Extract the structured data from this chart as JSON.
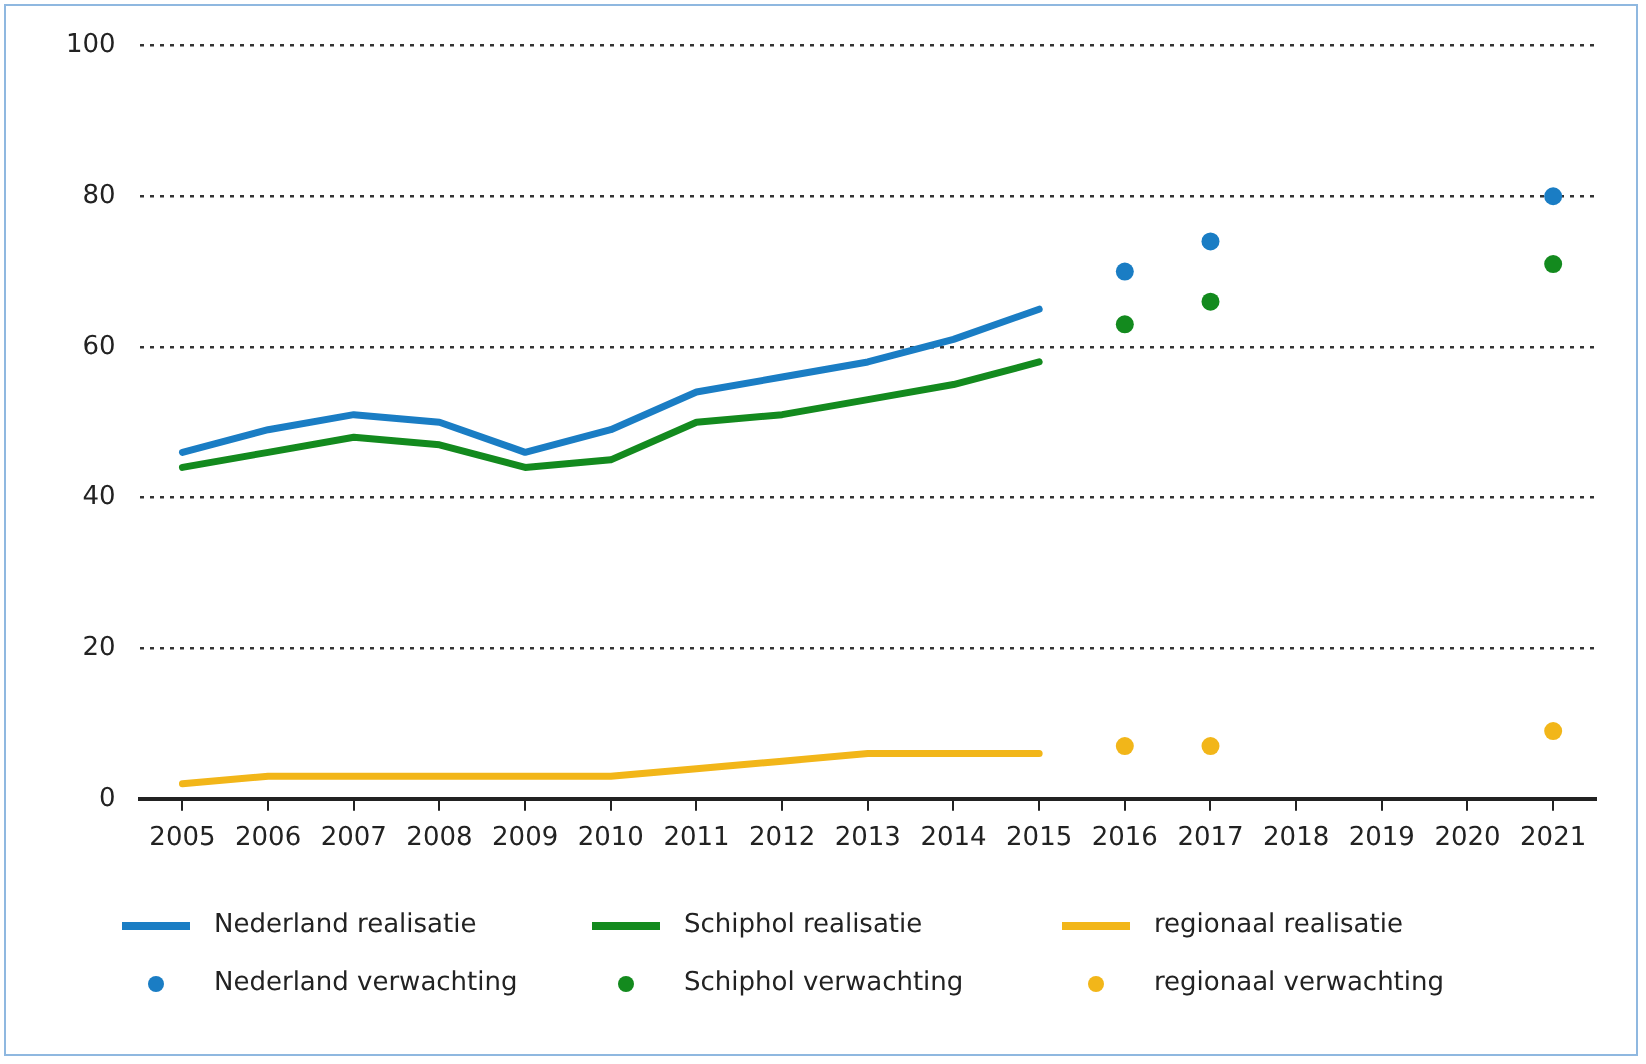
{
  "chart_data": {
    "type": "line",
    "categories": [
      "2005",
      "2006",
      "2007",
      "2008",
      "2009",
      "2010",
      "2011",
      "2012",
      "2013",
      "2014",
      "2015",
      "2016",
      "2017",
      "2018",
      "2019",
      "2020",
      "2021"
    ],
    "series": [
      {
        "name": "Nederland realisatie",
        "type": "line",
        "marker": "none",
        "color": "#1a7dc4",
        "values": [
          46,
          49,
          51,
          50,
          46,
          49,
          54,
          56,
          58,
          61,
          65,
          null,
          null,
          null,
          null,
          null,
          null
        ]
      },
      {
        "name": "Schiphol realisatie",
        "type": "line",
        "marker": "none",
        "color": "#138a1e",
        "values": [
          44,
          46,
          48,
          47,
          44,
          45,
          50,
          51,
          53,
          55,
          58,
          null,
          null,
          null,
          null,
          null,
          null
        ]
      },
      {
        "name": "regionaal realisatie",
        "type": "line",
        "marker": "none",
        "color": "#f2b619",
        "values": [
          2,
          3,
          3,
          3,
          3,
          3,
          4,
          5,
          6,
          6,
          6,
          null,
          null,
          null,
          null,
          null,
          null
        ]
      },
      {
        "name": "Nederland verwachting",
        "type": "scatter",
        "marker": "circle",
        "color": "#1a7dc4",
        "values": [
          null,
          null,
          null,
          null,
          null,
          null,
          null,
          null,
          null,
          null,
          null,
          70,
          74,
          null,
          null,
          null,
          80
        ]
      },
      {
        "name": "Schiphol verwachting",
        "type": "scatter",
        "marker": "circle",
        "color": "#138a1e",
        "values": [
          null,
          null,
          null,
          null,
          null,
          null,
          null,
          null,
          null,
          null,
          null,
          63,
          66,
          null,
          null,
          null,
          71
        ]
      },
      {
        "name": "regionaal verwachting",
        "type": "scatter",
        "marker": "circle",
        "color": "#f2b619",
        "values": [
          null,
          null,
          null,
          null,
          null,
          null,
          null,
          null,
          null,
          null,
          null,
          7,
          7,
          null,
          null,
          null,
          9
        ]
      }
    ],
    "ylim": [
      0,
      100
    ],
    "yticks": [
      0,
      20,
      40,
      60,
      80,
      100
    ],
    "grid": "y",
    "legend": "bottom"
  }
}
